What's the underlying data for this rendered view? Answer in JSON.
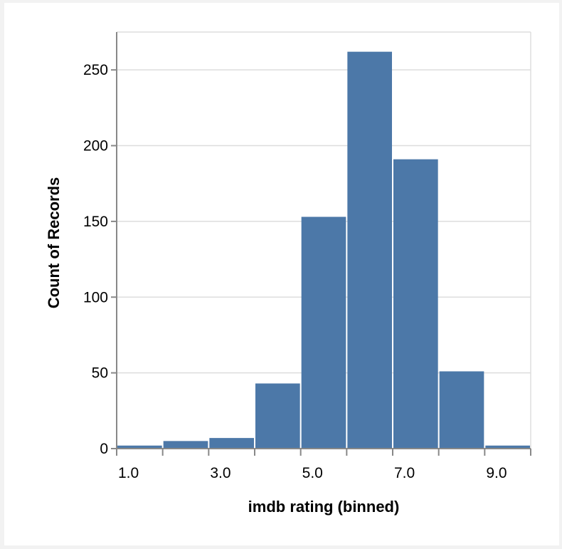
{
  "chart_data": {
    "type": "bar",
    "xlabel": "imdb rating (binned)",
    "ylabel": "Count of Records",
    "xlim": [
      1,
      10
    ],
    "ylim": [
      0,
      275
    ],
    "x_ticks": [
      "1.0",
      "3.0",
      "5.0",
      "7.0",
      "9.0"
    ],
    "x_tick_values": [
      1,
      3,
      5,
      7,
      9
    ],
    "y_ticks": [
      "0",
      "50",
      "100",
      "150",
      "200",
      "250"
    ],
    "y_tick_values": [
      0,
      50,
      100,
      150,
      200,
      250
    ],
    "bins": [
      {
        "start": 1,
        "end": 2,
        "count": 2
      },
      {
        "start": 2,
        "end": 3,
        "count": 5
      },
      {
        "start": 3,
        "end": 4,
        "count": 7
      },
      {
        "start": 4,
        "end": 5,
        "count": 43
      },
      {
        "start": 5,
        "end": 6,
        "count": 153
      },
      {
        "start": 6,
        "end": 7,
        "count": 262
      },
      {
        "start": 7,
        "end": 8,
        "count": 191
      },
      {
        "start": 8,
        "end": 9,
        "count": 51
      },
      {
        "start": 9,
        "end": 10,
        "count": 2
      }
    ],
    "grid": true,
    "bar_color": "#4c78a8",
    "grid_color": "#dddddd",
    "axis_color": "#888888"
  }
}
